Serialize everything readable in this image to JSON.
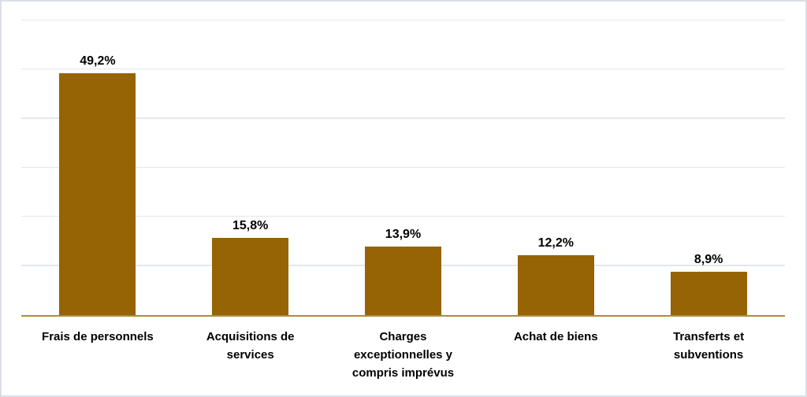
{
  "chart_data": {
    "type": "bar",
    "title": "",
    "xlabel": "",
    "ylabel": "",
    "categories": [
      "Frais de personnels",
      "Acquisitions de services",
      "Charges exceptionnelles y compris imprévus",
      "Achat de biens",
      "Transferts et subventions"
    ],
    "category_lines": [
      [
        "Frais de personnels"
      ],
      [
        "Acquisitions de",
        "services"
      ],
      [
        "Charges",
        "exceptionnelles y",
        "compris imprévus"
      ],
      [
        "Achat de biens"
      ],
      [
        "Transferts et",
        "subventions"
      ]
    ],
    "values": [
      49.2,
      15.8,
      13.9,
      12.2,
      8.9
    ],
    "value_labels": [
      "49,2%",
      "15,8%",
      "13,9%",
      "12,2%",
      "8,9%"
    ],
    "ylim": [
      0,
      60
    ],
    "gridline_step": 10,
    "grid": true,
    "legend": false,
    "y_axis_labels_visible": false,
    "bar_color": "#966305",
    "axis_color": "#AD8C3F",
    "gridline_color": "#E3E7EE",
    "border_color": "#D9DEE6",
    "label_color": "#000000",
    "background": "#FFFFFF"
  }
}
